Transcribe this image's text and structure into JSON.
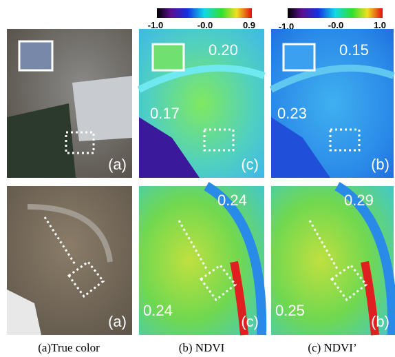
{
  "colorbars": [
    {
      "ticks": [
        "-1.0",
        "-0.0",
        "0.9"
      ]
    },
    {
      "ticks": [
        "-1.0",
        "-0.0",
        "1.0"
      ]
    }
  ],
  "rows": [
    {
      "panels": [
        {
          "label": "(a)"
        },
        {
          "label": "(c)",
          "values": [
            "0.20",
            "0.17"
          ]
        },
        {
          "label": "(b)",
          "values": [
            "0.15",
            "0.23"
          ]
        }
      ]
    },
    {
      "panels": [
        {
          "label": "(a)"
        },
        {
          "label": "(c)",
          "values": [
            "0.24",
            "0.24"
          ]
        },
        {
          "label": "(b)",
          "values": [
            "0.29",
            "0.25"
          ]
        }
      ]
    }
  ],
  "captions": [
    "(a)True color",
    "(b) NDVI",
    "(c) NDVI’"
  ]
}
